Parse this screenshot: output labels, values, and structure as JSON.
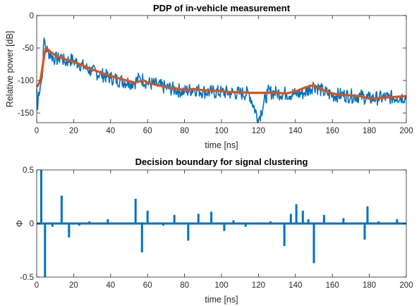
{
  "colors": {
    "signal": "#0072BD",
    "envelope": "#D95319",
    "axis": "#262626"
  },
  "chart_data": [
    {
      "type": "line",
      "title": "PDP of in-vehicle measurement",
      "xlabel": "time [ns]",
      "ylabel": "Relative power [dB]",
      "xlim": [
        0,
        200
      ],
      "ylim": [
        -165,
        0
      ],
      "xticks": [
        0,
        20,
        40,
        60,
        80,
        100,
        120,
        140,
        160,
        180,
        200
      ],
      "yticks": [
        0,
        -50,
        -100,
        -150
      ],
      "grid": false,
      "series": [
        {
          "color": "#0072BD",
          "style": "noisy-trace",
          "x": [
            0,
            0.5,
            1,
            2,
            3,
            4,
            5,
            6,
            8,
            10,
            12,
            13,
            15,
            18,
            20,
            23,
            26,
            30,
            35,
            40,
            45,
            50,
            53,
            56,
            60,
            65,
            70,
            75,
            80,
            85,
            90,
            95,
            100,
            105,
            110,
            115,
            120,
            125,
            130,
            135,
            140,
            145,
            150,
            155,
            160,
            165,
            170,
            175,
            180,
            185,
            190,
            195,
            200
          ],
          "y": [
            -113,
            -145,
            -118,
            -108,
            -95,
            -35,
            -50,
            -55,
            -62,
            -66,
            -68,
            -60,
            -72,
            -68,
            -70,
            -74,
            -80,
            -86,
            -91,
            -96,
            -100,
            -103,
            -103,
            -96,
            -104,
            -107,
            -111,
            -114,
            -117,
            -113,
            -117,
            -118,
            -118,
            -119,
            -120,
            -120,
            -160,
            -118,
            -119,
            -120,
            -121,
            -119,
            -107,
            -117,
            -123,
            -122,
            -124,
            -124,
            -128,
            -127,
            -126,
            -126,
            -125
          ]
        },
        {
          "color": "#D95319",
          "style": "smooth",
          "x": [
            0,
            1,
            2,
            3,
            4,
            5,
            6,
            8,
            10,
            12,
            14,
            16,
            20,
            25,
            30,
            35,
            40,
            45,
            50,
            53,
            55,
            58,
            60,
            65,
            70,
            75,
            80,
            85,
            90,
            95,
            100,
            105,
            110,
            115,
            120,
            125,
            130,
            135,
            140,
            145,
            150,
            155,
            160,
            165,
            170,
            175,
            180,
            185,
            190,
            195,
            200
          ],
          "y": [
            -110,
            -106,
            -100,
            -82,
            -62,
            -50,
            -52,
            -57,
            -61,
            -64,
            -65,
            -68,
            -71,
            -77,
            -83,
            -88,
            -93,
            -97,
            -101,
            -103,
            -102,
            -100,
            -103,
            -107,
            -110,
            -112,
            -115,
            -113,
            -115,
            -116,
            -116,
            -118,
            -118,
            -119,
            -119,
            -119,
            -119,
            -120,
            -117,
            -111,
            -107,
            -115,
            -120,
            -122,
            -123,
            -124,
            -128,
            -127,
            -126,
            -125,
            -124
          ]
        }
      ]
    },
    {
      "type": "bar",
      "style": "stem",
      "title": "Decision boundary for signal clustering",
      "xlabel": "time [ns]",
      "ylabel": "Φ",
      "xlim": [
        0,
        200
      ],
      "ylim": [
        -0.5,
        0.5
      ],
      "xticks": [
        0,
        20,
        40,
        60,
        80,
        100,
        120,
        140,
        160,
        180,
        200
      ],
      "yticks": [
        0.5,
        0,
        -0.5
      ],
      "grid": false,
      "series": [
        {
          "color": "#0072BD",
          "x": [
            2.5,
            4.5,
            8.5,
            13.5,
            17.5,
            23,
            28.5,
            38.5,
            47,
            53.5,
            57,
            60,
            68.5,
            74.5,
            82,
            87.5,
            94.5,
            101.5,
            106.5,
            113,
            120,
            126.5,
            134,
            137.5,
            140.5,
            144,
            147,
            150,
            155.5,
            161.5,
            166,
            174,
            177.5,
            179,
            185,
            195
          ],
          "y": [
            0.5,
            -0.5,
            -0.03,
            0.26,
            -0.13,
            -0.02,
            0.02,
            0.04,
            -0.01,
            0.23,
            -0.27,
            0.12,
            -0.02,
            0.08,
            -0.16,
            0.09,
            0.11,
            -0.07,
            0.03,
            -0.03,
            -0.01,
            0.02,
            -0.21,
            0.09,
            0.18,
            0.12,
            0.04,
            -0.37,
            0.08,
            -0.01,
            0.05,
            0.01,
            -0.15,
            0.16,
            0.02,
            0.04
          ]
        }
      ]
    }
  ]
}
